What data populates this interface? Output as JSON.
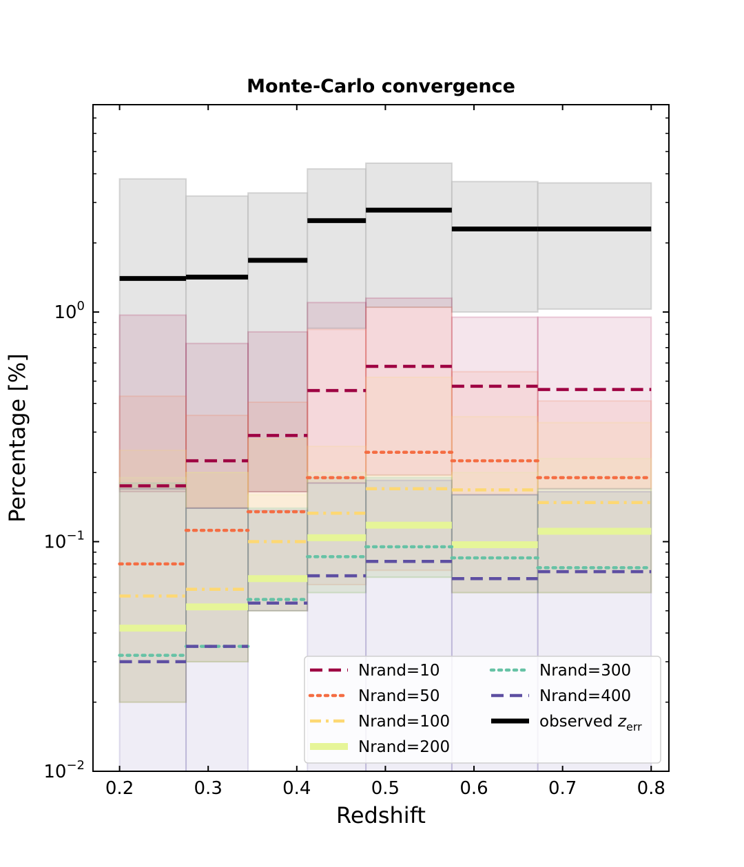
{
  "chart_data": {
    "type": "step",
    "title": "Monte-Carlo convergence",
    "xlabel": "Redshift",
    "ylabel": "Percentage [%]",
    "xlim": [
      0.17,
      0.82
    ],
    "ylim": [
      0.01,
      8
    ],
    "yscale": "log",
    "xticks": [
      0.2,
      0.3,
      0.4,
      0.5,
      0.6,
      0.7,
      0.8
    ],
    "xtick_labels": [
      "0.2",
      "0.3",
      "0.4",
      "0.5",
      "0.6",
      "0.7",
      "0.8"
    ],
    "yticks": [
      {
        "base": "10",
        "exp": "0",
        "value": 1
      },
      {
        "base": "10",
        "exp": "−1",
        "value": 0.1
      },
      {
        "base": "10",
        "exp": "−2",
        "value": 0.01
      }
    ],
    "bin_edges": [
      0.2,
      0.275,
      0.345,
      0.412,
      0.478,
      0.575,
      0.672,
      0.8
    ],
    "legend": {
      "placement": "lower-right",
      "columns": 2
    },
    "series": [
      {
        "name": "Nrand=10",
        "color": "#9e0142",
        "style": "dashed",
        "values": [
          0.175,
          0.225,
          0.29,
          0.455,
          0.58,
          0.475,
          0.46
        ],
        "band_low": [
          0.165,
          0.14,
          0.165,
          0.18,
          0.195,
          0.16,
          0.17
        ],
        "band_high": [
          0.97,
          0.73,
          0.82,
          1.1,
          1.15,
          0.95,
          0.95
        ]
      },
      {
        "name": "Nrand=50",
        "color": "#f46d43",
        "style": "dotted",
        "values": [
          0.08,
          0.112,
          0.135,
          0.19,
          0.245,
          0.225,
          0.19
        ],
        "band_low": [
          0.02,
          0.03,
          0.05,
          0.065,
          0.075,
          0.06,
          0.06
        ],
        "band_high": [
          0.43,
          0.355,
          0.405,
          0.84,
          1.05,
          0.55,
          0.41
        ]
      },
      {
        "name": "Nrand=100",
        "color": "#fdd873",
        "style": "dashdot",
        "values": [
          0.058,
          0.062,
          0.1,
          0.133,
          0.17,
          0.168,
          0.148
        ],
        "band_low": [
          0.02,
          0.03,
          0.05,
          0.06,
          0.07,
          0.06,
          0.06
        ],
        "band_high": [
          0.25,
          0.2,
          0.28,
          0.26,
          0.52,
          0.35,
          0.33
        ]
      },
      {
        "name": "Nrand=200",
        "color": "#e6f598",
        "style": "solid",
        "values": [
          0.042,
          0.052,
          0.069,
          0.104,
          0.118,
          0.097,
          0.111
        ],
        "band_low": [
          0.02,
          0.03,
          0.05,
          0.06,
          0.07,
          0.06,
          0.06
        ],
        "band_high": [
          0.19,
          0.2,
          0.16,
          0.2,
          0.195,
          0.2,
          0.23
        ]
      },
      {
        "name": "Nrand=300",
        "color": "#66c2a5",
        "style": "dotted",
        "values": [
          0.032,
          0.035,
          0.056,
          0.086,
          0.095,
          0.085,
          0.077
        ],
        "band_low": [
          0.02,
          0.03,
          0.05,
          0.06,
          0.07,
          0.06,
          0.06
        ],
        "band_high": [
          0.18,
          0.14,
          0.14,
          0.19,
          0.19,
          0.16,
          0.17
        ]
      },
      {
        "name": "Nrand=400",
        "color": "#5e4fa2",
        "style": "dashed",
        "values": [
          0.03,
          0.035,
          0.054,
          0.071,
          0.082,
          0.069,
          0.074
        ],
        "band_low": [
          0.01,
          0.01,
          0.05,
          0.01,
          0.01,
          0.01,
          0.01
        ],
        "band_high": [
          0.17,
          0.14,
          0.137,
          0.18,
          0.185,
          0.16,
          0.165
        ]
      }
    ],
    "observed": {
      "name": "observed",
      "label_main": "observed ",
      "label_var": "z",
      "label_sub": "err",
      "color": "#000000",
      "band_color": "#dcdcdc",
      "values": [
        1.4,
        1.42,
        1.68,
        2.5,
        2.78,
        2.3,
        2.3
      ],
      "band_low": [
        0.17,
        0.14,
        0.165,
        0.85,
        1.05,
        1.0,
        1.03
      ],
      "band_high": [
        3.8,
        3.2,
        3.3,
        4.2,
        4.45,
        3.7,
        3.65
      ]
    }
  }
}
